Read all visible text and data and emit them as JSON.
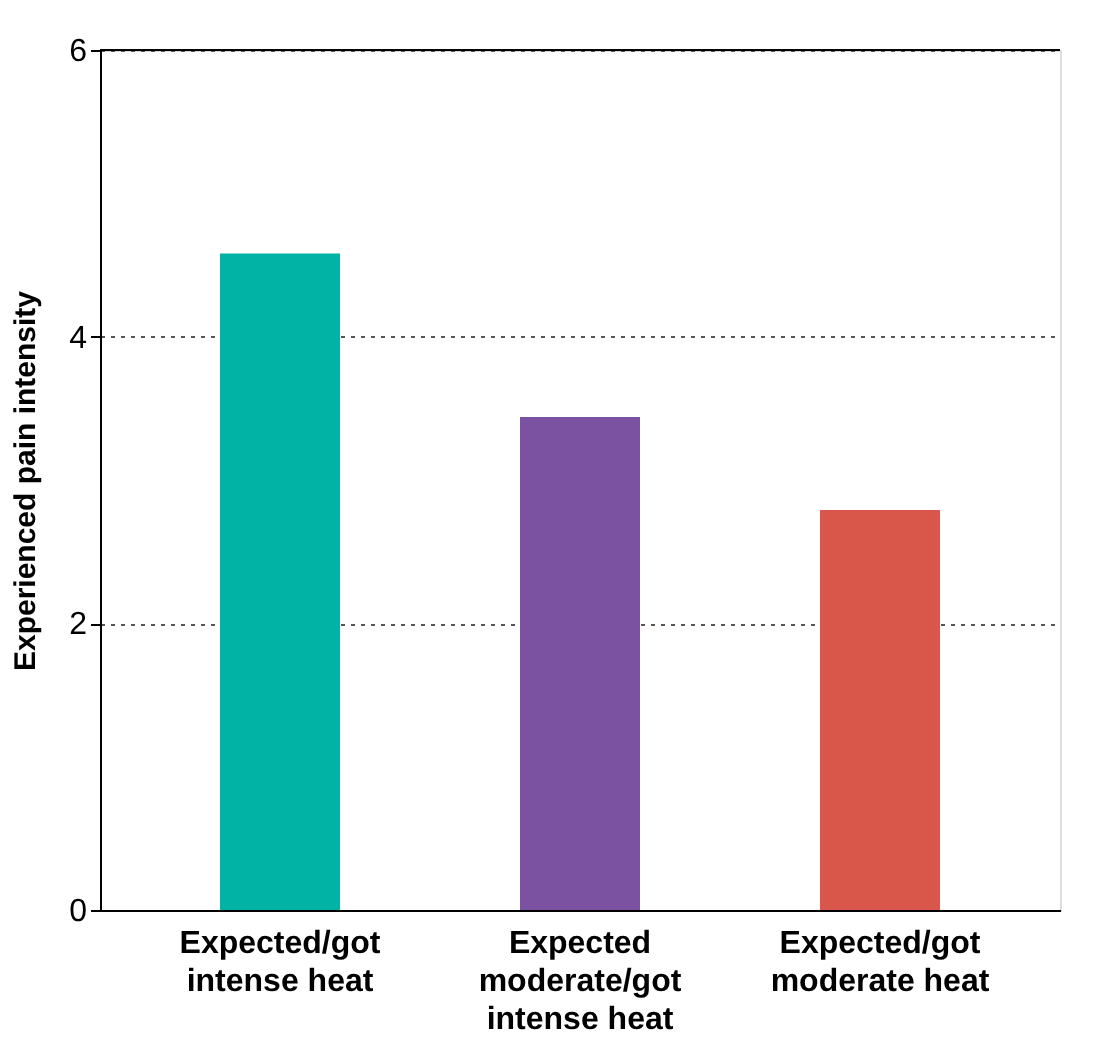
{
  "chart_data": {
    "type": "bar",
    "ylabel": "Experienced pain intensity",
    "categories": [
      "Expected/got intense heat",
      "Expected moderate/got intense heat",
      "Expected/got moderate heat"
    ],
    "values": [
      4.58,
      3.44,
      2.79
    ],
    "colors": [
      "#00b3a4",
      "#7b52a1",
      "#d9574a"
    ],
    "ylim": [
      0,
      6
    ],
    "yticks": [
      0,
      2,
      4,
      6
    ],
    "grid": "y"
  }
}
